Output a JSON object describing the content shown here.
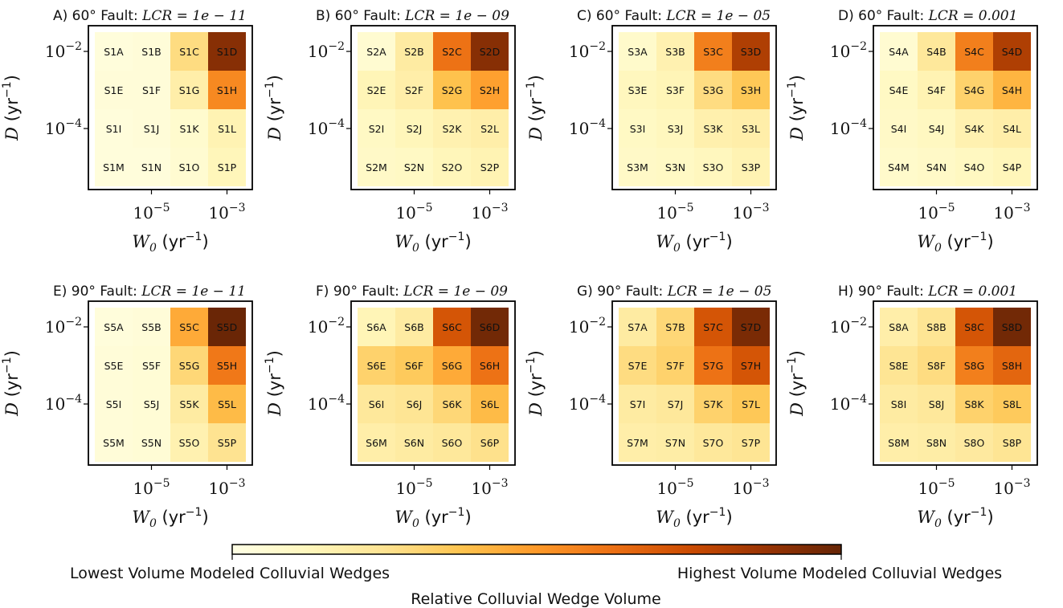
{
  "chart_data": {
    "type": "heatmap",
    "x_ticks": [
      "10^-5",
      "10^-3"
    ],
    "y_ticks": [
      "10^-2",
      "10^-4"
    ],
    "x_label": "W0 (yr-1)",
    "y_label": "D (yr-1)",
    "row_letters": [
      [
        "A",
        "B",
        "C",
        "D"
      ],
      [
        "E",
        "F",
        "G",
        "H"
      ],
      [
        "I",
        "J",
        "K",
        "L"
      ],
      [
        "M",
        "N",
        "O",
        "P"
      ]
    ],
    "panels": [
      {
        "label": "A) 60° Fault:",
        "lcr": "LCR = 1e − 11",
        "prefix": "S1",
        "values": [
          [
            0.03,
            0.04,
            0.28,
            0.92
          ],
          [
            0.04,
            0.04,
            0.18,
            0.55
          ],
          [
            0.03,
            0.04,
            0.07,
            0.15
          ],
          [
            0.03,
            0.03,
            0.06,
            0.13
          ]
        ]
      },
      {
        "label": "B) 60° Fault:",
        "lcr": "LCR = 1e − 09",
        "prefix": "S2",
        "values": [
          [
            0.06,
            0.2,
            0.62,
            0.92
          ],
          [
            0.14,
            0.18,
            0.38,
            0.48
          ],
          [
            0.1,
            0.13,
            0.16,
            0.18
          ],
          [
            0.09,
            0.1,
            0.13,
            0.15
          ]
        ]
      },
      {
        "label": "C) 60° Fault:",
        "lcr": "LCR = 1e − 05",
        "prefix": "S3",
        "values": [
          [
            0.08,
            0.16,
            0.58,
            0.82
          ],
          [
            0.12,
            0.14,
            0.28,
            0.36
          ],
          [
            0.1,
            0.12,
            0.17,
            0.18
          ],
          [
            0.09,
            0.1,
            0.12,
            0.15
          ]
        ]
      },
      {
        "label": "D) 60° Fault:",
        "lcr": "LCR = 0.001",
        "prefix": "S4",
        "values": [
          [
            0.06,
            0.22,
            0.58,
            0.82
          ],
          [
            0.1,
            0.15,
            0.32,
            0.42
          ],
          [
            0.09,
            0.11,
            0.16,
            0.18
          ],
          [
            0.08,
            0.09,
            0.11,
            0.13
          ]
        ]
      },
      {
        "label": "E) 90° Fault:",
        "lcr": "LCR = 1e − 11",
        "prefix": "S5",
        "values": [
          [
            0.03,
            0.04,
            0.45,
            0.99
          ],
          [
            0.04,
            0.05,
            0.3,
            0.6
          ],
          [
            0.04,
            0.05,
            0.2,
            0.4
          ],
          [
            0.04,
            0.05,
            0.16,
            0.25
          ]
        ]
      },
      {
        "label": "F) 90° Fault:",
        "lcr": "LCR = 1e − 09",
        "prefix": "S6",
        "values": [
          [
            0.14,
            0.2,
            0.72,
            0.97
          ],
          [
            0.32,
            0.35,
            0.45,
            0.62
          ],
          [
            0.22,
            0.24,
            0.3,
            0.4
          ],
          [
            0.18,
            0.2,
            0.22,
            0.26
          ]
        ]
      },
      {
        "label": "G) 90° Fault:",
        "lcr": "LCR = 1e − 05",
        "prefix": "S7",
        "values": [
          [
            0.2,
            0.3,
            0.72,
            0.95
          ],
          [
            0.28,
            0.32,
            0.62,
            0.72
          ],
          [
            0.2,
            0.22,
            0.32,
            0.36
          ],
          [
            0.18,
            0.19,
            0.22,
            0.24
          ]
        ]
      },
      {
        "label": "H) 90° Fault:",
        "lcr": "LCR = 0.001",
        "prefix": "S8",
        "values": [
          [
            0.18,
            0.24,
            0.72,
            0.97
          ],
          [
            0.24,
            0.28,
            0.58,
            0.66
          ],
          [
            0.2,
            0.22,
            0.32,
            0.35
          ],
          [
            0.18,
            0.19,
            0.21,
            0.24
          ]
        ]
      }
    ],
    "colorbar": {
      "title": "Relative Colluvial Wedge Volume",
      "low_label": "Lowest Volume Modeled Colluvial Wedges",
      "high_label": "Highest Volume Modeled Colluvial Wedges",
      "colors": [
        "#ffffe5",
        "#fff7bc",
        "#fee391",
        "#fec44f",
        "#fe9929",
        "#ec7014",
        "#cc4c02",
        "#993404",
        "#662506"
      ]
    }
  }
}
